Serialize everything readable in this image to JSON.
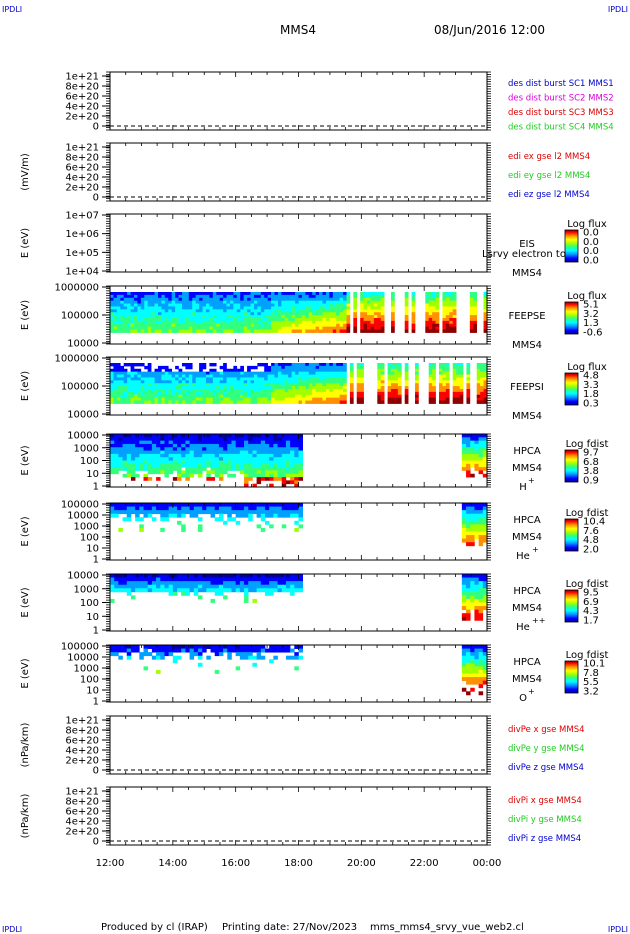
{
  "header": {
    "corner_tl": "IPDLI",
    "corner_tr": "IPDLI",
    "corner_bl": "IPDLI",
    "corner_br": "IPDLI",
    "spacecraft": "MMS4",
    "datetime": "08/Jun/2016 12:00"
  },
  "footer": {
    "produced_by": "Produced by cl (IRAP)",
    "printing_date": "Printing date: 27/Nov/2023",
    "filename": "mms_mms4_srvy_vue_web2.cl"
  },
  "colors": {
    "red": "#dd0000",
    "magenta": "#dd00dd",
    "green": "#22cc22",
    "blue": "#0000cc",
    "colorbar": [
      "#00009c",
      "#0000ff",
      "#00a0ff",
      "#00ffff",
      "#30ff80",
      "#a0ff00",
      "#ffff00",
      "#ff9000",
      "#ff0000",
      "#900000"
    ]
  },
  "chart_data": {
    "type": "multi-panel time series / spectrogram",
    "x_axis": {
      "ticks": [
        "12:00",
        "14:00",
        "16:00",
        "18:00",
        "20:00",
        "22:00",
        "00:00"
      ],
      "range": [
        "12:00",
        "00:00"
      ]
    },
    "panels": [
      {
        "id": "p1",
        "type": "line",
        "ylabel": "",
        "yticks": [
          "1e+21",
          "8e+20",
          "6e+20",
          "4e+20",
          "2e+20",
          "0"
        ],
        "legend": [
          {
            "text": "des dist burst SC1 MMS1",
            "color": "#0000cc"
          },
          {
            "text": "des dist burst SC2 MMS2",
            "color": "#dd00dd"
          },
          {
            "text": "des dist burst SC3 MMS3",
            "color": "#dd0000"
          },
          {
            "text": "des dist burst SC4 MMS4",
            "color": "#22cc22"
          }
        ]
      },
      {
        "id": "p2",
        "type": "line",
        "ylabel": "(mV/m)",
        "yticks": [
          "1e+21",
          "8e+20",
          "6e+20",
          "4e+20",
          "2e+20",
          "0"
        ],
        "legend": [
          {
            "text": "edi ex gse l2 MMS4",
            "color": "#dd0000"
          },
          {
            "text": "edi ey gse l2 MMS4",
            "color": "#22cc22"
          },
          {
            "text": "edi ez gse l2 MMS4",
            "color": "#0000cc"
          }
        ]
      },
      {
        "id": "p3",
        "type": "heatmap",
        "ylabel": "E (eV)",
        "yticks": [
          "1e+07",
          "1e+06",
          "1e+05",
          "1e+04"
        ],
        "instrument": "EIS",
        "spacecraft": "MMS4",
        "overlay_text": "Lsrvy electron to",
        "cbar_title": "Log flux",
        "cbar_ticks": [
          "0.0",
          "0.0",
          "0.0",
          "0.0"
        ]
      },
      {
        "id": "p4",
        "type": "heatmap",
        "ylabel": "E (eV)",
        "yticks": [
          "1000000",
          "100000",
          "10000"
        ],
        "instrument": "FEEPSE",
        "spacecraft": "MMS4",
        "cbar_title": "Log flux",
        "cbar_ticks": [
          "5.1",
          "3.2",
          "1.3",
          "-0.6"
        ]
      },
      {
        "id": "p5",
        "type": "heatmap",
        "ylabel": "E (eV)",
        "yticks": [
          "1000000",
          "100000",
          "10000"
        ],
        "instrument": "FEEPSI",
        "spacecraft": "MMS4",
        "cbar_title": "Log flux",
        "cbar_ticks": [
          "4.8",
          "3.3",
          "1.8",
          "0.3"
        ]
      },
      {
        "id": "p6",
        "type": "heatmap",
        "ylabel": "E (eV)",
        "yticks": [
          "10000",
          "1000",
          "100",
          "10",
          "1"
        ],
        "instrument": "HPCA",
        "spacecraft": "MMS4",
        "species": "H",
        "charge": "+",
        "cbar_title": "Log fdist",
        "cbar_ticks": [
          "9.7",
          "6.8",
          "3.8",
          "0.9"
        ]
      },
      {
        "id": "p7",
        "type": "heatmap",
        "ylabel": "E (eV)",
        "yticks": [
          "100000",
          "10000",
          "1000",
          "100",
          "10",
          "1"
        ],
        "instrument": "HPCA",
        "spacecraft": "MMS4",
        "species": "He",
        "charge": "+",
        "cbar_title": "Log fdist",
        "cbar_ticks": [
          "10.4",
          "7.6",
          "4.8",
          "2.0"
        ]
      },
      {
        "id": "p8",
        "type": "heatmap",
        "ylabel": "E (eV)",
        "yticks": [
          "10000",
          "1000",
          "100",
          "10",
          "1"
        ],
        "instrument": "HPCA",
        "spacecraft": "MMS4",
        "species": "He",
        "charge": "++",
        "cbar_title": "Log fdist",
        "cbar_ticks": [
          "9.5",
          "6.9",
          "4.3",
          "1.7"
        ]
      },
      {
        "id": "p9",
        "type": "heatmap",
        "ylabel": "E (eV)",
        "yticks": [
          "100000",
          "10000",
          "1000",
          "100",
          "10",
          "1"
        ],
        "instrument": "HPCA",
        "spacecraft": "MMS4",
        "species": "O",
        "charge": "+",
        "cbar_title": "Log fdist",
        "cbar_ticks": [
          "10.1",
          "7.8",
          "5.5",
          "3.2"
        ]
      },
      {
        "id": "p10",
        "type": "line",
        "ylabel": "(nPa/km)",
        "yticks": [
          "1e+21",
          "8e+20",
          "6e+20",
          "4e+20",
          "2e+20",
          "0"
        ],
        "legend": [
          {
            "text": "divPe x gse MMS4",
            "color": "#dd0000"
          },
          {
            "text": "divPe y gse MMS4",
            "color": "#22cc22"
          },
          {
            "text": "divPe z gse MMS4",
            "color": "#0000cc"
          }
        ]
      },
      {
        "id": "p11",
        "type": "line",
        "ylabel": "(nPa/km)",
        "yticks": [
          "1e+21",
          "8e+20",
          "6e+20",
          "4e+20",
          "2e+20",
          "0"
        ],
        "legend": [
          {
            "text": "divPi x gse MMS4",
            "color": "#dd0000"
          },
          {
            "text": "divPi y gse MMS4",
            "color": "#22cc22"
          },
          {
            "text": "divPi z gse MMS4",
            "color": "#0000cc"
          }
        ]
      }
    ]
  }
}
